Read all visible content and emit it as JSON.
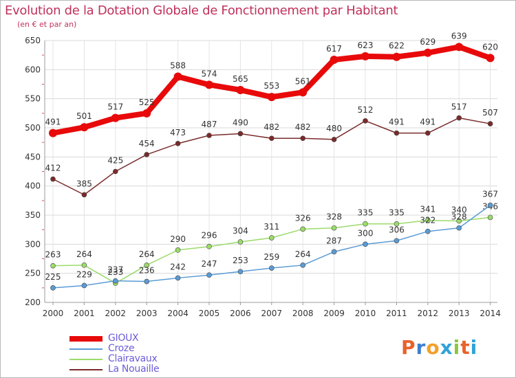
{
  "header": {
    "title": "Evolution de la Dotation Globale de Fonctionnement par Habitant",
    "subtitle": "(en € et par an)"
  },
  "brand": {
    "text": "Proxiti",
    "colors": [
      "#e8622c",
      "#3a7fd0",
      "#f2a02c",
      "#2fa3d8",
      "#8cc63f",
      "#e8622c",
      "#2fa3d8"
    ]
  },
  "chart_data": {
    "type": "line",
    "x": [
      "2000",
      "2001",
      "2002",
      "2003",
      "2004",
      "2005",
      "2006",
      "2007",
      "2008",
      "2009",
      "2010",
      "2011",
      "2012",
      "2013",
      "2014"
    ],
    "ylim": [
      200,
      650
    ],
    "yticks": [
      "200",
      "250",
      "300",
      "350",
      "400",
      "450",
      "500",
      "550",
      "600",
      "650"
    ],
    "grid": true,
    "legend_position": "bottom-left",
    "series": [
      {
        "name": "GIOUX",
        "color": "#e80a0a",
        "values": [
          491,
          501,
          517,
          525,
          588,
          574,
          565,
          553,
          561,
          617,
          623,
          622,
          629,
          639,
          620
        ]
      },
      {
        "name": "Croze",
        "color": "#5a9bd5",
        "values": [
          225,
          229,
          237,
          236,
          242,
          247,
          253,
          259,
          264,
          287,
          300,
          306,
          322,
          328,
          367
        ]
      },
      {
        "name": "Clairavaux",
        "color": "#9bdb6a",
        "values": [
          263,
          264,
          233,
          264,
          290,
          296,
          304,
          311,
          326,
          328,
          335,
          335,
          341,
          340,
          346
        ]
      },
      {
        "name": "La Nouaille",
        "color": "#7a2a2a",
        "values": [
          412,
          385,
          425,
          454,
          473,
          487,
          490,
          482,
          482,
          480,
          512,
          491,
          491,
          517,
          507
        ]
      }
    ]
  }
}
